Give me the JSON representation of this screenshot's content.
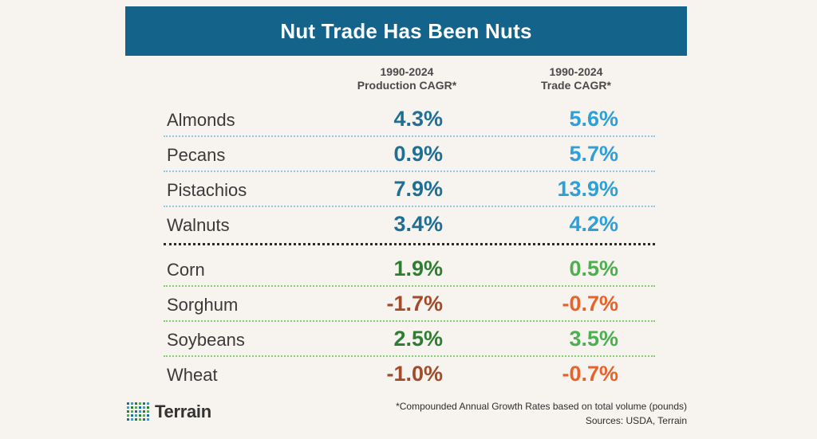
{
  "title": "Nut Trade Has Been Nuts",
  "columns": [
    {
      "line1": "1990-2024",
      "line2": "Production CAGR*"
    },
    {
      "line1": "1990-2024",
      "line2": "Trade CAGR*"
    }
  ],
  "colors": {
    "banner": "#14638a",
    "nut_production": "#1f6e96",
    "nut_trade": "#2f9fd7",
    "grain_production": "#2e7d32",
    "grain_trade": "#4caf50",
    "negative_production": "#a24a2a",
    "negative_trade": "#e8622a"
  },
  "chart_data": {
    "type": "table",
    "title": "Nut Trade Has Been Nuts",
    "columns": [
      "1990-2024 Production CAGR*",
      "1990-2024 Trade CAGR*"
    ],
    "rows": [
      {
        "label": "Almonds",
        "group": "nuts",
        "production": "4.3%",
        "trade": "5.6%"
      },
      {
        "label": "Pecans",
        "group": "nuts",
        "production": "0.9%",
        "trade": "5.7%"
      },
      {
        "label": "Pistachios",
        "group": "nuts",
        "production": "7.9%",
        "trade": "13.9%"
      },
      {
        "label": "Walnuts",
        "group": "nuts",
        "production": "3.4%",
        "trade": "4.2%"
      },
      {
        "label": "Corn",
        "group": "grains",
        "production": "1.9%",
        "trade": "0.5%"
      },
      {
        "label": "Sorghum",
        "group": "grains",
        "production": "-1.7%",
        "trade": "-0.7%"
      },
      {
        "label": "Soybeans",
        "group": "grains",
        "production": "2.5%",
        "trade": "3.5%"
      },
      {
        "label": "Wheat",
        "group": "grains",
        "production": "-1.0%",
        "trade": "-0.7%"
      }
    ]
  },
  "footer": {
    "note": "*Compounded Annual Growth Rates based on total volume (pounds)",
    "sources": "Sources: USDA, Terrain",
    "logo_text": "Terrain"
  }
}
